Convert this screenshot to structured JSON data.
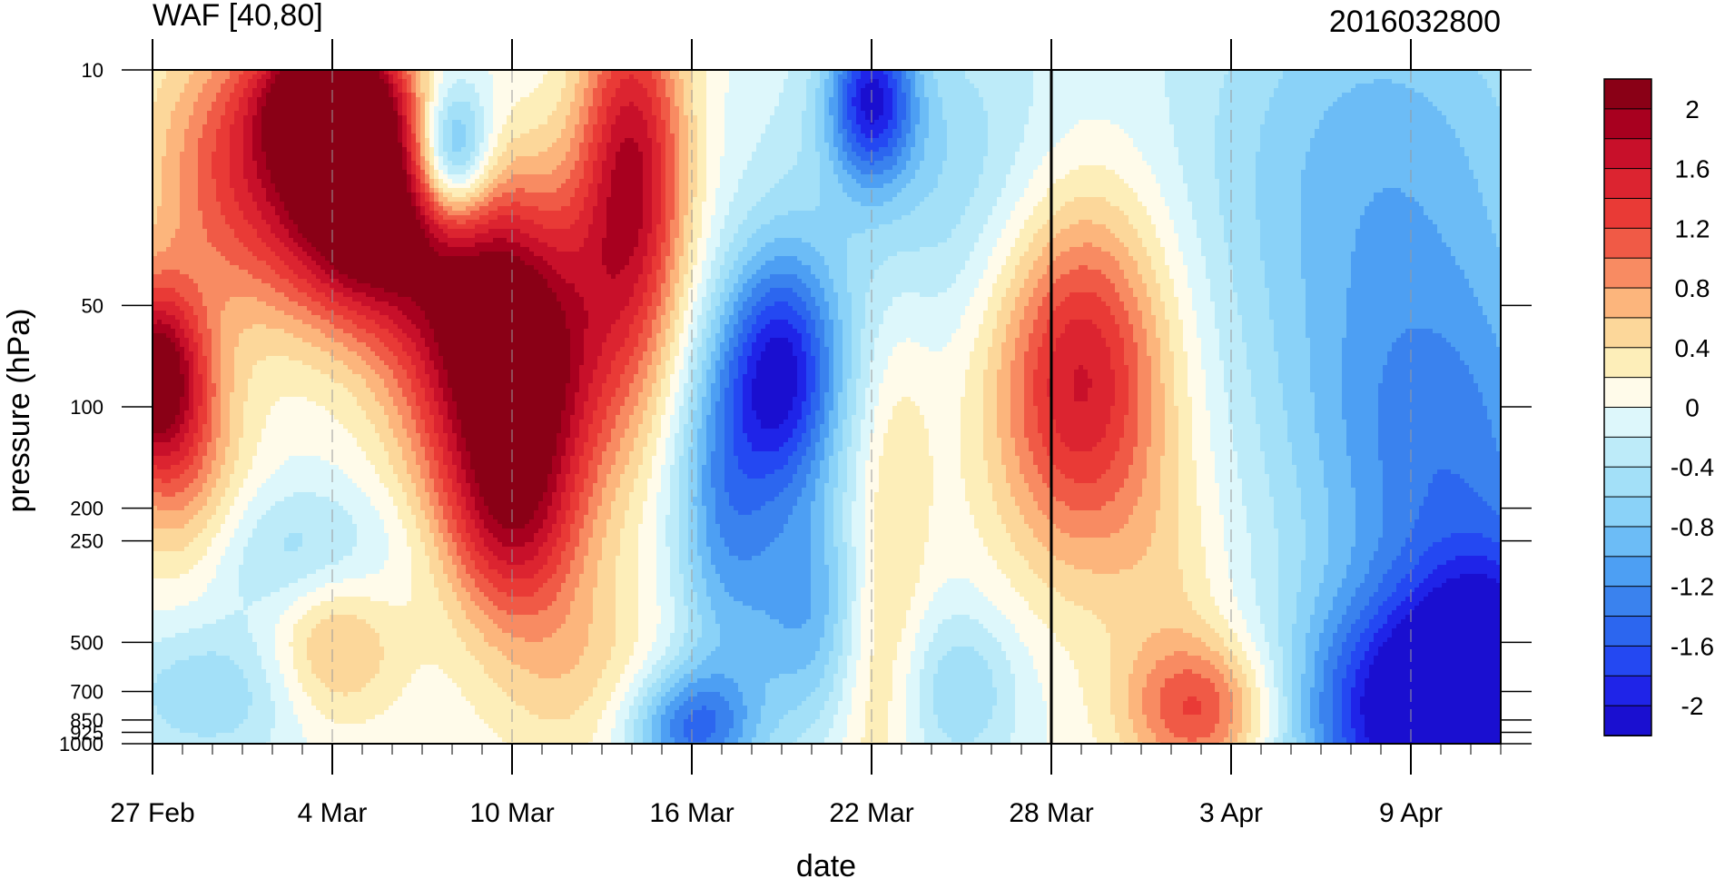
{
  "chart_data": {
    "type": "heatmap",
    "title": "WAF [40,80]",
    "subtitle": "2016032800",
    "xlabel": "date",
    "ylabel": "pressure (hPa)",
    "x_tick_labels": [
      "27 Feb",
      "4 Mar",
      "10 Mar",
      "16 Mar",
      "22 Mar",
      "28 Mar",
      "3 Apr",
      "9 Apr"
    ],
    "x_range": [
      "2016-02-27",
      "2016-04-12"
    ],
    "y_tick_labels": [
      "10",
      "50",
      "100",
      "200",
      "250",
      "500",
      "700",
      "850",
      "925",
      "1000"
    ],
    "y_ticks": [
      10,
      50,
      100,
      200,
      250,
      500,
      700,
      850,
      925,
      1000
    ],
    "y_range": [
      1000,
      10
    ],
    "current_date": "2016-03-28",
    "colorbar": {
      "labels": [
        "2",
        "1.6",
        "1.2",
        "0.8",
        "0.4",
        "0",
        "-0.4",
        "-0.8",
        "-1.2",
        "-1.6",
        "-2"
      ],
      "levels": [
        -2.2,
        -2,
        -1.8,
        -1.6,
        -1.4,
        -1.2,
        -1,
        -0.8,
        -0.6,
        -0.4,
        -0.2,
        0,
        0.2,
        0.4,
        0.6,
        0.8,
        1,
        1.2,
        1.4,
        1.6,
        1.8,
        2,
        2.2
      ],
      "colors": [
        "#1a0fd0",
        "#1f24e8",
        "#2448f2",
        "#2c66ef",
        "#3a82ee",
        "#4d9ff3",
        "#6cbcf6",
        "#8ad2f8",
        "#a3e0f8",
        "#bdebf9",
        "#ddf7fb",
        "#fffbea",
        "#fdeeb9",
        "#fcd79a",
        "#fcb57c",
        "#f88b62",
        "#f05a46",
        "#e93a36",
        "#dc2430",
        "#c8102a",
        "#a8001f",
        "#8a0016"
      ]
    },
    "features": [
      {
        "date": "2016-03-05",
        "p": 25,
        "value": 2.3,
        "spread_days": 1.9,
        "spread_p": 0.55
      },
      {
        "date": "2016-03-04",
        "p": 12,
        "value": 2.3,
        "spread_days": 1.6,
        "spread_p": 0.35
      },
      {
        "date": "2016-02-27",
        "p": 80,
        "value": 2.0,
        "spread_days": 1.2,
        "spread_p": 0.45
      },
      {
        "date": "2016-02-28",
        "p": 150,
        "value": 0.8,
        "spread_days": 1.5,
        "spread_p": 0.6
      },
      {
        "date": "2016-03-01",
        "p": 20,
        "value": 1.2,
        "spread_days": 2.2,
        "spread_p": 0.7
      },
      {
        "date": "2016-03-10",
        "p": 90,
        "value": 2.1,
        "spread_days": 2.3,
        "spread_p": 0.7
      },
      {
        "date": "2016-03-10",
        "p": 230,
        "value": 1.1,
        "spread_days": 1.6,
        "spread_p": 0.5
      },
      {
        "date": "2016-03-14",
        "p": 20,
        "value": 1.8,
        "spread_days": 1.3,
        "spread_p": 0.9
      },
      {
        "date": "2016-03-09",
        "p": 40,
        "value": 1.2,
        "spread_days": 2.5,
        "spread_p": 0.6
      },
      {
        "date": "2016-03-08",
        "p": 18,
        "value": -1.7,
        "spread_days": 0.9,
        "spread_p": 0.35
      },
      {
        "date": "2016-03-03",
        "p": 280,
        "value": -0.6,
        "spread_days": 2.4,
        "spread_p": 0.35
      },
      {
        "date": "2016-03-04",
        "p": 500,
        "value": 0.8,
        "spread_days": 1.6,
        "spread_p": 0.4
      },
      {
        "date": "2016-02-29",
        "p": 700,
        "value": -0.6,
        "spread_days": 2.4,
        "spread_p": 0.35
      },
      {
        "date": "2016-03-12",
        "p": 600,
        "value": 0.5,
        "spread_days": 2.2,
        "spread_p": 0.5
      },
      {
        "date": "2016-03-17",
        "p": 200,
        "value": -1.0,
        "spread_days": 1.2,
        "spread_p": 0.8
      },
      {
        "date": "2016-03-19",
        "p": 80,
        "value": -2.0,
        "spread_days": 1.4,
        "spread_p": 0.6
      },
      {
        "date": "2016-03-20",
        "p": 400,
        "value": -1.0,
        "spread_days": 1.6,
        "spread_p": 0.6
      },
      {
        "date": "2016-03-16",
        "p": 900,
        "value": -1.4,
        "spread_days": 1.5,
        "spread_p": 0.3
      },
      {
        "date": "2016-03-22",
        "p": 12,
        "value": -1.7,
        "spread_days": 1.0,
        "spread_p": 0.4
      },
      {
        "date": "2016-03-24",
        "p": 20,
        "value": -0.6,
        "spread_days": 3.5,
        "spread_p": 0.8
      },
      {
        "date": "2016-03-22",
        "p": 500,
        "value": 0.6,
        "spread_days": 1.0,
        "spread_p": 0.8
      },
      {
        "date": "2016-03-23",
        "p": 150,
        "value": 0.3,
        "spread_days": 0.8,
        "spread_p": 0.9
      },
      {
        "date": "2016-03-25",
        "p": 700,
        "value": -0.6,
        "spread_days": 1.4,
        "spread_p": 0.4
      },
      {
        "date": "2016-03-29",
        "p": 80,
        "value": 1.7,
        "spread_days": 2.1,
        "spread_p": 0.9
      },
      {
        "date": "2016-04-02",
        "p": 800,
        "value": 1.2,
        "spread_days": 1.8,
        "spread_p": 0.35
      },
      {
        "date": "2016-04-01",
        "p": 350,
        "value": 0.3,
        "spread_days": 1.5,
        "spread_p": 0.6
      },
      {
        "date": "2016-04-08",
        "p": 20,
        "value": -0.9,
        "spread_days": 4.5,
        "spread_p": 1.2
      },
      {
        "date": "2016-04-10",
        "p": 150,
        "value": -1.1,
        "spread_days": 3.5,
        "spread_p": 0.9
      },
      {
        "date": "2016-04-09",
        "p": 850,
        "value": -2.1,
        "spread_days": 2.8,
        "spread_p": 0.6
      },
      {
        "date": "2016-04-12",
        "p": 600,
        "value": -1.6,
        "spread_days": 2.0,
        "spread_p": 0.6
      }
    ]
  }
}
